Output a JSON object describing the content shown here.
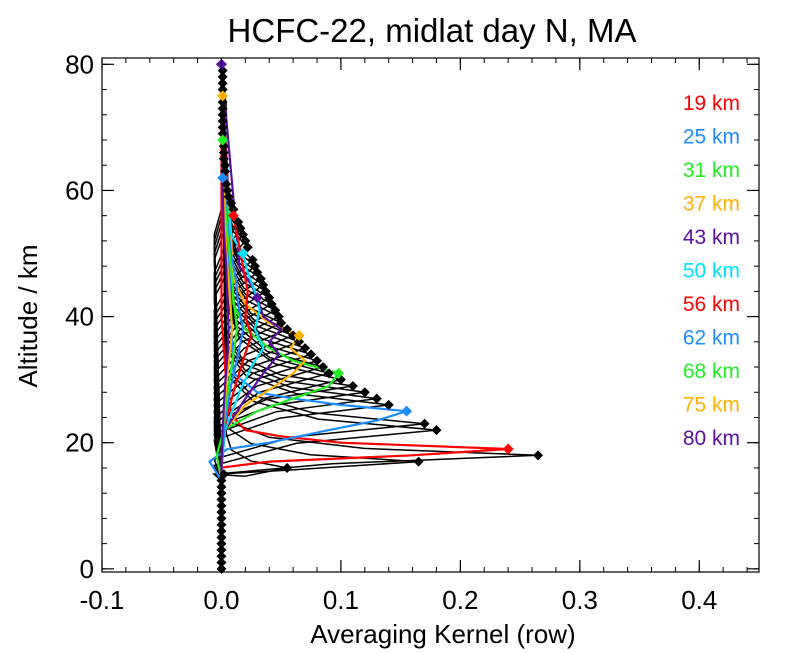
{
  "chart_data": {
    "type": "line",
    "title": "HCFC-22, midlat day N, MA",
    "xlabel": "Averaging Kernel (row)",
    "ylabel": "Altitude / km",
    "xlim": [
      -0.1,
      0.45
    ],
    "ylim": [
      -0.5,
      81
    ],
    "xticks": [
      -0.1,
      0.0,
      0.1,
      0.2,
      0.3,
      0.4
    ],
    "xtick_labels": [
      "-0.1",
      "0.0",
      "0.1",
      "0.2",
      "0.3",
      "0.4"
    ],
    "yticks": [
      0,
      20,
      40,
      60,
      80
    ],
    "ytick_labels": [
      "0",
      "20",
      "40",
      "60",
      "80"
    ],
    "grid": false,
    "legend_placement": "right",
    "legend": [
      {
        "label": "19 km",
        "color": "#ff0000"
      },
      {
        "label": "25 km",
        "color": "#1e8cff"
      },
      {
        "label": "31 km",
        "color": "#22ee22"
      },
      {
        "label": "37 km",
        "color": "#ffb000"
      },
      {
        "label": "43 km",
        "color": "#5a0fa0"
      },
      {
        "label": "50 km",
        "color": "#00e0ff"
      },
      {
        "label": "56 km",
        "color": "#ff0000"
      },
      {
        "label": "62 km",
        "color": "#1e8cff"
      },
      {
        "label": "68 km",
        "color": "#22ee22"
      },
      {
        "label": "75 km",
        "color": "#ffb000"
      },
      {
        "label": "80 km",
        "color": "#5a0fa0"
      }
    ],
    "marker_diagonal_black": [
      [
        0,
        0
      ],
      [
        0,
        1
      ],
      [
        0,
        2
      ],
      [
        0,
        3
      ],
      [
        0,
        4
      ],
      [
        0,
        5
      ],
      [
        0,
        6
      ],
      [
        0,
        7
      ],
      [
        0,
        8
      ],
      [
        0,
        9
      ],
      [
        0,
        10
      ],
      [
        0,
        11
      ],
      [
        0,
        12
      ],
      [
        0,
        13
      ],
      [
        0,
        14
      ],
      [
        0.002,
        15
      ],
      [
        0.055,
        16
      ],
      [
        0.165,
        17
      ],
      [
        0.265,
        18
      ],
      [
        0.18,
        22
      ],
      [
        0.17,
        23
      ],
      [
        0.14,
        26
      ],
      [
        0.13,
        27
      ],
      [
        0.12,
        28
      ],
      [
        0.11,
        29
      ],
      [
        0.1,
        30
      ],
      [
        0.09,
        31
      ],
      [
        0.085,
        32
      ],
      [
        0.08,
        33
      ],
      [
        0.075,
        34
      ],
      [
        0.07,
        35
      ],
      [
        0.065,
        36
      ],
      [
        0.06,
        37
      ],
      [
        0.055,
        38
      ],
      [
        0.05,
        39
      ],
      [
        0.048,
        40
      ],
      [
        0.045,
        41
      ],
      [
        0.042,
        42
      ],
      [
        0.04,
        43
      ],
      [
        0.037,
        44
      ],
      [
        0.035,
        45
      ],
      [
        0.033,
        46
      ],
      [
        0.03,
        47
      ],
      [
        0.028,
        48
      ],
      [
        0.026,
        49
      ],
      [
        0.022,
        51
      ],
      [
        0.02,
        52
      ],
      [
        0.018,
        53
      ],
      [
        0.016,
        54
      ],
      [
        0.014,
        55
      ],
      [
        0.01,
        57
      ],
      [
        0.008,
        58
      ],
      [
        0.006,
        59
      ],
      [
        0.005,
        60
      ],
      [
        0.004,
        61
      ],
      [
        0.003,
        63
      ],
      [
        0.003,
        64
      ],
      [
        0.002,
        65
      ],
      [
        0.002,
        66
      ],
      [
        0.002,
        67
      ],
      [
        0.001,
        69
      ],
      [
        0.001,
        70
      ],
      [
        0.001,
        71
      ],
      [
        0.001,
        72
      ],
      [
        0.001,
        73
      ],
      [
        0.001,
        74
      ],
      [
        0.001,
        76
      ],
      [
        0.001,
        77
      ],
      [
        0.001,
        78
      ],
      [
        0.001,
        79
      ]
    ],
    "series": [
      {
        "name": "19 km",
        "color": "#ff0000",
        "x": [
          0,
          0,
          -0.002,
          0.04,
          0.16,
          0.24,
          0.1,
          0.05,
          0.02,
          0.01,
          0.005,
          0,
          0
        ],
        "y": [
          5,
          14,
          16,
          17,
          18,
          19,
          20,
          21,
          22,
          24,
          27,
          40,
          80
        ]
      },
      {
        "name": "25 km",
        "color": "#1e8cff",
        "x": [
          0,
          0,
          -0.01,
          0.005,
          0.04,
          0.09,
          0.13,
          0.155,
          0.1,
          0.06,
          0.03,
          0.01,
          0
        ],
        "y": [
          5,
          14,
          17,
          19,
          20,
          22,
          23.5,
          25,
          26,
          27,
          28,
          31,
          80
        ]
      },
      {
        "name": "31 km",
        "color": "#22ee22",
        "x": [
          0,
          0,
          -0.004,
          0.002,
          0.03,
          0.06,
          0.09,
          0.098,
          0.06,
          0.04,
          0.02,
          0.01,
          0
        ],
        "y": [
          5,
          14,
          18,
          22,
          25,
          27,
          29,
          31,
          33,
          35,
          38,
          42,
          80
        ]
      },
      {
        "name": "37 km",
        "color": "#ffb000",
        "x": [
          0,
          0,
          0.003,
          0.02,
          0.045,
          0.06,
          0.07,
          0.058,
          0.065,
          0.04,
          0.02,
          0.01,
          0
        ],
        "y": [
          5,
          16,
          22,
          26,
          29,
          31,
          33,
          35,
          37,
          39,
          42,
          46,
          80
        ]
      },
      {
        "name": "43 km",
        "color": "#5a0fa0",
        "x": [
          0,
          0,
          0.003,
          0.02,
          0.035,
          0.048,
          0.04,
          0.05,
          0.035,
          0.03,
          0.025,
          0.015,
          0
        ],
        "y": [
          5,
          16,
          22,
          27,
          31,
          34,
          36,
          38,
          40,
          43,
          45,
          48,
          80
        ]
      },
      {
        "name": "50 km",
        "color": "#00e0ff",
        "x": [
          0,
          0,
          0.003,
          0.015,
          0.025,
          0.035,
          0.028,
          0.032,
          0.028,
          0.022,
          0.018,
          0.008,
          0
        ],
        "y": [
          5,
          16,
          22,
          28,
          32,
          35,
          38,
          41,
          44,
          47,
          50,
          53,
          80
        ]
      },
      {
        "name": "56 km",
        "color": "#ff0000",
        "x": [
          0,
          0,
          0.002,
          0.01,
          0.018,
          0.025,
          0.02,
          0.022,
          0.018,
          0.014,
          0.01,
          0.006,
          0
        ],
        "y": [
          5,
          16,
          22,
          28,
          33,
          37,
          40,
          44,
          48,
          52,
          56,
          58,
          80
        ]
      },
      {
        "name": "62 km",
        "color": "#1e8cff",
        "x": [
          0,
          0,
          0.002,
          0.008,
          0.014,
          0.018,
          0.014,
          0.012,
          0.008,
          0.005,
          0.002,
          0.001,
          0
        ],
        "y": [
          5,
          16,
          22,
          29,
          34,
          38,
          42,
          46,
          50,
          55,
          60,
          62,
          80
        ]
      },
      {
        "name": "68 km",
        "color": "#22ee22",
        "x": [
          0,
          0,
          0.001,
          0.006,
          0.01,
          0.013,
          0.01,
          0.008,
          0.005,
          0.003,
          0.001,
          0.001,
          0
        ],
        "y": [
          5,
          16,
          22,
          29,
          34,
          38,
          43,
          48,
          53,
          58,
          64,
          68,
          80
        ]
      },
      {
        "name": "75 km",
        "color": "#ffb000",
        "x": [
          0,
          0,
          0.001,
          0.004,
          0.007,
          0.009,
          0.007,
          0.005,
          0.003,
          0.002,
          0.001,
          0.001,
          0
        ],
        "y": [
          5,
          16,
          22,
          29,
          34,
          38,
          43,
          48,
          54,
          60,
          66,
          75,
          80
        ]
      },
      {
        "name": "80 km",
        "color": "#5a0fa0",
        "x": [
          0,
          0,
          0.001,
          0.003,
          0.005,
          0.006,
          0.005,
          0.004,
          0.002,
          0.001,
          0.001,
          0.001,
          0
        ],
        "y": [
          5,
          16,
          22,
          29,
          34,
          38,
          43,
          48,
          54,
          60,
          66,
          74,
          80
        ]
      }
    ]
  }
}
